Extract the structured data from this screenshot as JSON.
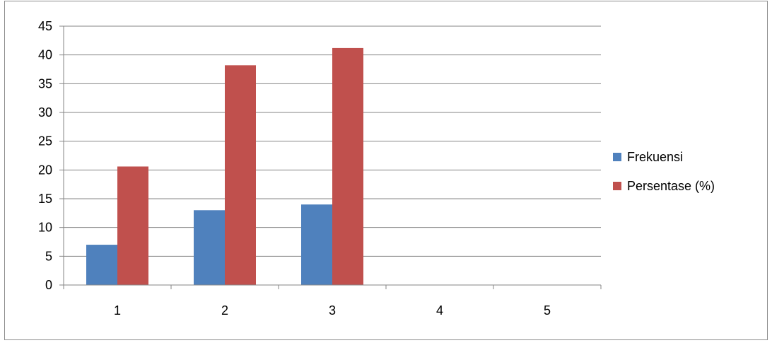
{
  "chart_data": {
    "type": "bar",
    "categories": [
      "1",
      "2",
      "3",
      "4",
      "5"
    ],
    "series": [
      {
        "name": "Frekuensi",
        "values": [
          7,
          13,
          14,
          null,
          null
        ],
        "color": "#4f81bd"
      },
      {
        "name": "Persentase (%)",
        "values": [
          20.6,
          38.2,
          41.2,
          null,
          null
        ],
        "color": "#c0504d"
      }
    ],
    "y_ticks": [
      "0",
      "5",
      "10",
      "15",
      "20",
      "25",
      "30",
      "35",
      "40",
      "45"
    ],
    "ylim": [
      0,
      45
    ],
    "grid": true,
    "legend_position": "right"
  }
}
